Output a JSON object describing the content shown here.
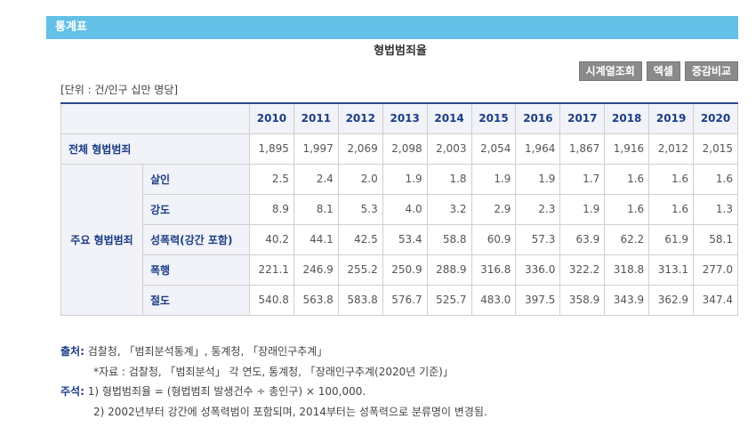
{
  "header": {
    "title": "통계표"
  },
  "table_title": "형법범죄율",
  "buttons": [
    "시계열조회",
    "엑셀",
    "증감비교"
  ],
  "unit": "[단위 : 건/인구 십만 명당]",
  "table": {
    "columns": [
      "2010",
      "2011",
      "2012",
      "2013",
      "2014",
      "2015",
      "2016",
      "2017",
      "2018",
      "2019",
      "2020"
    ],
    "total_row": {
      "label": "전체 형법범죄",
      "values": [
        "1,895",
        "1,997",
        "2,069",
        "2,098",
        "2,003",
        "2,054",
        "1,964",
        "1,867",
        "1,916",
        "2,012",
        "2,015"
      ]
    },
    "group_label": "주요 형법범죄",
    "rows": [
      {
        "label": "살인",
        "values": [
          "2.5",
          "2.4",
          "2.0",
          "1.9",
          "1.8",
          "1.9",
          "1.9",
          "1.7",
          "1.6",
          "1.6",
          "1.6"
        ]
      },
      {
        "label": "강도",
        "values": [
          "8.9",
          "8.1",
          "5.3",
          "4.0",
          "3.2",
          "2.9",
          "2.3",
          "1.9",
          "1.6",
          "1.6",
          "1.3"
        ]
      },
      {
        "label": "성폭력(강간 포함)",
        "values": [
          "40.2",
          "44.1",
          "42.5",
          "53.4",
          "58.8",
          "60.9",
          "57.3",
          "63.9",
          "62.2",
          "61.9",
          "58.1"
        ]
      },
      {
        "label": "폭행",
        "values": [
          "221.1",
          "246.9",
          "255.2",
          "250.9",
          "288.9",
          "316.8",
          "336.0",
          "322.2",
          "318.8",
          "313.1",
          "277.0"
        ]
      },
      {
        "label": "절도",
        "values": [
          "540.8",
          "563.8",
          "583.8",
          "576.7",
          "525.7",
          "483.0",
          "397.5",
          "358.9",
          "343.9",
          "362.9",
          "347.4"
        ]
      }
    ]
  },
  "notes": {
    "source_label": "출처:",
    "source": "검찰청, 「범죄분석통계」, 통계청, 「장래인구추계」",
    "source_detail": "*자료 : 검찰청, 「범죄분석」 각 연도, 통계청, 「장래인구추계(2020년 기준)」",
    "note_label": "주석:",
    "items": [
      "1) 형법범죄율 = (형법범죄 발생건수 ÷ 총인구) × 100,000.",
      "2) 2002년부터 강간에 성폭력범이 포함되며, 2014부터는 성폭력으로 분류명이 변경됨."
    ]
  }
}
